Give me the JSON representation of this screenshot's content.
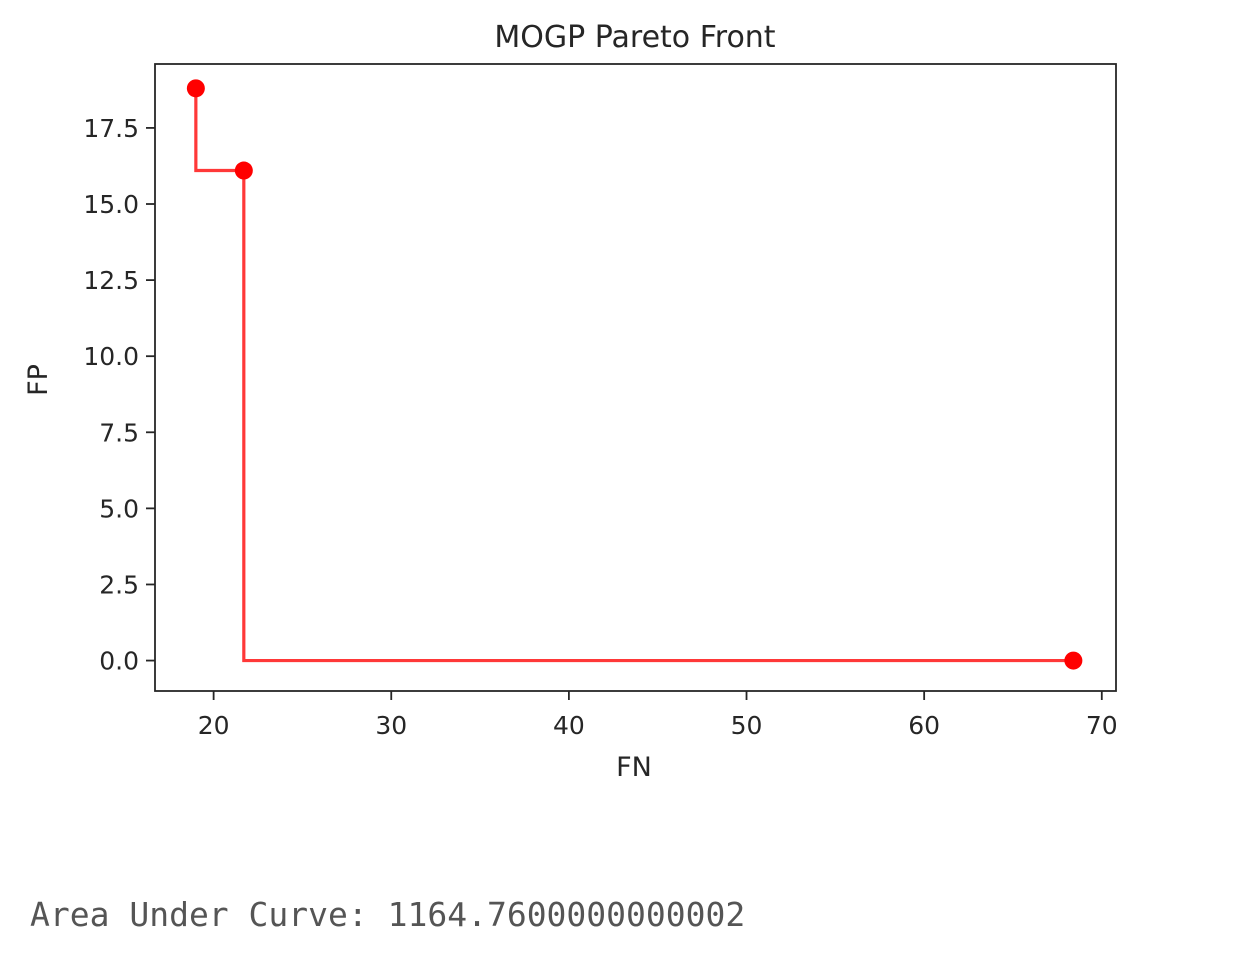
{
  "chart_data": {
    "type": "line",
    "title": "MOGP Pareto Front",
    "xlabel": "FN",
    "ylabel": "FP",
    "xlim": [
      16.7,
      70.8
    ],
    "ylim": [
      -1.0,
      19.6
    ],
    "xticks": [
      20,
      30,
      40,
      50,
      60,
      70
    ],
    "yticks": [
      0.0,
      2.5,
      5.0,
      7.5,
      10.0,
      12.5,
      15.0,
      17.5
    ],
    "xtick_labels": [
      "20",
      "30",
      "40",
      "50",
      "60",
      "70"
    ],
    "ytick_labels": [
      "0.0",
      "2.5",
      "5.0",
      "7.5",
      "10.0",
      "12.5",
      "15.0",
      "17.5"
    ],
    "grid": false,
    "series": [
      {
        "style": "step",
        "color": "#ff0000",
        "x": [
          19.0,
          21.7,
          68.4
        ],
        "y": [
          18.8,
          16.1,
          0.0
        ]
      }
    ]
  },
  "output": {
    "auc_text": "Area Under Curve: 1164.7600000000002"
  }
}
